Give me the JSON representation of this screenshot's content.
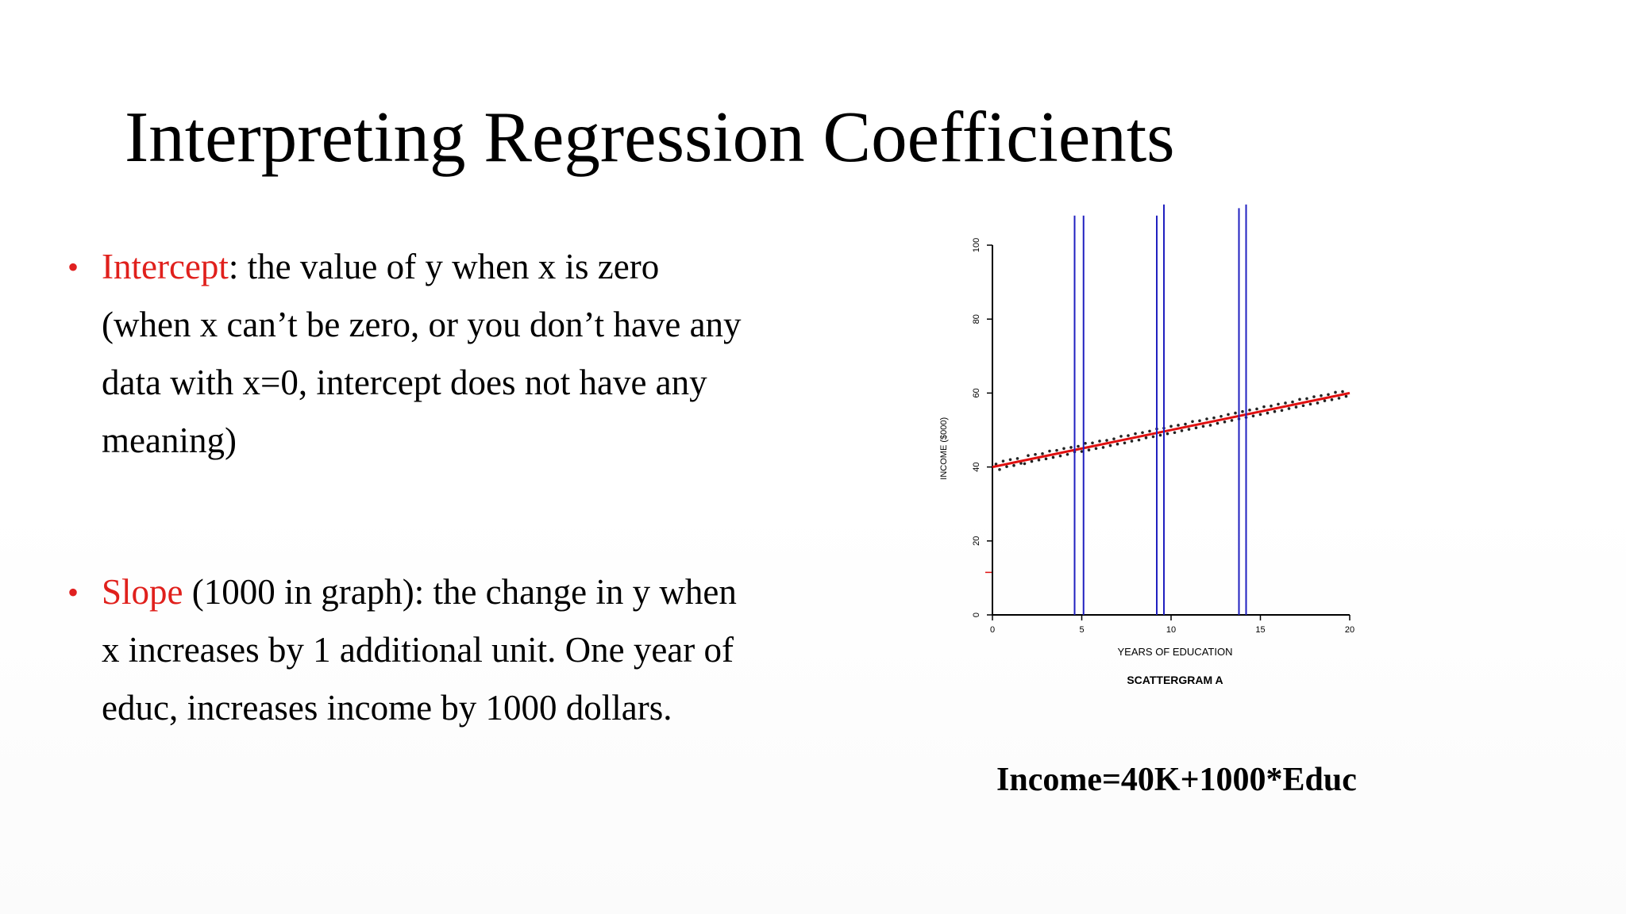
{
  "slide": {
    "title": "Interpreting Regression Coefficients",
    "bullets": [
      {
        "term": "Intercept",
        "rest_first_line": ": the value of y when x is zero",
        "lines": [
          "(when x can’t be zero, or you don’t have any",
          "data with x=0, intercept does not have any",
          "meaning)"
        ]
      },
      {
        "term": "Slope",
        "rest_first_line": " (1000 in graph): the change in y when",
        "lines": [
          "x increases by 1 additional unit. One year of",
          "educ, increases income by 1000 dollars."
        ]
      }
    ],
    "bullet_symbol": "•",
    "equation": "Income=40K+1000*Educ"
  },
  "chart_data": {
    "type": "scatter",
    "title": "SCATTERGRAM A",
    "xlabel": "YEARS OF EDUCATION",
    "ylabel": "INCOME ($000)",
    "xlim": [
      0,
      20
    ],
    "ylim": [
      0,
      100
    ],
    "x_ticks": [
      0,
      5,
      10,
      15,
      20
    ],
    "y_ticks": [
      0,
      20,
      40,
      60,
      80,
      100
    ],
    "regression_line": {
      "intercept": 40,
      "slope": 1,
      "x_range": [
        0,
        20
      ],
      "color": "#e01010"
    },
    "vertical_lines": [
      {
        "x": 4.6,
        "y_top": 108
      },
      {
        "x": 5.1,
        "y_top": 108
      },
      {
        "x": 9.2,
        "y_top": 108
      },
      {
        "x": 9.6,
        "y_top": 111
      },
      {
        "x": 13.8,
        "y_top": 110
      },
      {
        "x": 14.2,
        "y_top": 111
      }
    ],
    "vertical_line_color": "#2020c0",
    "point_color": "#222222",
    "points": [
      {
        "x": 0.2,
        "y": 40.8
      },
      {
        "x": 0.4,
        "y": 39.3
      },
      {
        "x": 0.6,
        "y": 41.6
      },
      {
        "x": 0.8,
        "y": 40.1
      },
      {
        "x": 1.0,
        "y": 42.0
      },
      {
        "x": 1.2,
        "y": 40.4
      },
      {
        "x": 1.4,
        "y": 42.3
      },
      {
        "x": 1.6,
        "y": 41.0
      },
      {
        "x": 1.8,
        "y": 40.9
      },
      {
        "x": 2.0,
        "y": 43.1
      },
      {
        "x": 2.2,
        "y": 41.5
      },
      {
        "x": 2.4,
        "y": 43.4
      },
      {
        "x": 2.6,
        "y": 41.9
      },
      {
        "x": 2.8,
        "y": 43.6
      },
      {
        "x": 3.0,
        "y": 42.2
      },
      {
        "x": 3.2,
        "y": 44.3
      },
      {
        "x": 3.4,
        "y": 42.6
      },
      {
        "x": 3.6,
        "y": 44.5
      },
      {
        "x": 3.8,
        "y": 43.0
      },
      {
        "x": 4.0,
        "y": 45.0
      },
      {
        "x": 4.2,
        "y": 43.4
      },
      {
        "x": 4.4,
        "y": 45.3
      },
      {
        "x": 4.6,
        "y": 44.1
      },
      {
        "x": 4.8,
        "y": 45.6
      },
      {
        "x": 5.0,
        "y": 44.2
      },
      {
        "x": 5.2,
        "y": 46.4
      },
      {
        "x": 5.4,
        "y": 44.6
      },
      {
        "x": 5.6,
        "y": 46.5
      },
      {
        "x": 5.8,
        "y": 45.0
      },
      {
        "x": 6.0,
        "y": 47.0
      },
      {
        "x": 6.2,
        "y": 45.3
      },
      {
        "x": 6.4,
        "y": 47.2
      },
      {
        "x": 6.6,
        "y": 45.8
      },
      {
        "x": 6.8,
        "y": 47.6
      },
      {
        "x": 7.0,
        "y": 46.2
      },
      {
        "x": 7.2,
        "y": 48.3
      },
      {
        "x": 7.4,
        "y": 46.5
      },
      {
        "x": 7.6,
        "y": 48.5
      },
      {
        "x": 7.8,
        "y": 47.0
      },
      {
        "x": 8.0,
        "y": 49.0
      },
      {
        "x": 8.2,
        "y": 47.3
      },
      {
        "x": 8.4,
        "y": 49.3
      },
      {
        "x": 8.6,
        "y": 47.9
      },
      {
        "x": 8.8,
        "y": 49.7
      },
      {
        "x": 9.0,
        "y": 48.2
      },
      {
        "x": 9.2,
        "y": 50.3
      },
      {
        "x": 9.4,
        "y": 48.6
      },
      {
        "x": 9.6,
        "y": 50.5
      },
      {
        "x": 9.8,
        "y": 49.0
      },
      {
        "x": 10.0,
        "y": 51.0
      },
      {
        "x": 10.2,
        "y": 49.3
      },
      {
        "x": 10.4,
        "y": 51.3
      },
      {
        "x": 10.6,
        "y": 49.8
      },
      {
        "x": 10.8,
        "y": 51.6
      },
      {
        "x": 11.0,
        "y": 50.2
      },
      {
        "x": 11.2,
        "y": 52.3
      },
      {
        "x": 11.4,
        "y": 50.6
      },
      {
        "x": 11.6,
        "y": 52.5
      },
      {
        "x": 11.8,
        "y": 51.0
      },
      {
        "x": 12.0,
        "y": 53.0
      },
      {
        "x": 12.2,
        "y": 51.3
      },
      {
        "x": 12.4,
        "y": 53.3
      },
      {
        "x": 12.6,
        "y": 51.8
      },
      {
        "x": 12.8,
        "y": 53.7
      },
      {
        "x": 13.0,
        "y": 52.2
      },
      {
        "x": 13.2,
        "y": 54.2
      },
      {
        "x": 13.4,
        "y": 52.6
      },
      {
        "x": 13.6,
        "y": 54.6
      },
      {
        "x": 13.8,
        "y": 53.0
      },
      {
        "x": 14.0,
        "y": 55.0
      },
      {
        "x": 14.2,
        "y": 53.4
      },
      {
        "x": 14.4,
        "y": 55.4
      },
      {
        "x": 14.6,
        "y": 53.8
      },
      {
        "x": 14.8,
        "y": 55.7
      },
      {
        "x": 15.0,
        "y": 54.2
      },
      {
        "x": 15.2,
        "y": 56.3
      },
      {
        "x": 15.4,
        "y": 54.6
      },
      {
        "x": 15.6,
        "y": 56.5
      },
      {
        "x": 15.8,
        "y": 55.0
      },
      {
        "x": 16.0,
        "y": 57.0
      },
      {
        "x": 16.2,
        "y": 55.3
      },
      {
        "x": 16.4,
        "y": 57.3
      },
      {
        "x": 16.6,
        "y": 55.8
      },
      {
        "x": 16.8,
        "y": 57.6
      },
      {
        "x": 17.0,
        "y": 56.2
      },
      {
        "x": 17.2,
        "y": 58.3
      },
      {
        "x": 17.4,
        "y": 56.6
      },
      {
        "x": 17.6,
        "y": 58.5
      },
      {
        "x": 17.8,
        "y": 57.0
      },
      {
        "x": 18.0,
        "y": 59.0
      },
      {
        "x": 18.2,
        "y": 57.3
      },
      {
        "x": 18.4,
        "y": 59.3
      },
      {
        "x": 18.6,
        "y": 57.9
      },
      {
        "x": 18.8,
        "y": 59.6
      },
      {
        "x": 19.0,
        "y": 58.2
      },
      {
        "x": 19.2,
        "y": 60.2
      },
      {
        "x": 19.4,
        "y": 58.6
      },
      {
        "x": 19.6,
        "y": 60.4
      },
      {
        "x": 19.8,
        "y": 59.1
      }
    ]
  }
}
